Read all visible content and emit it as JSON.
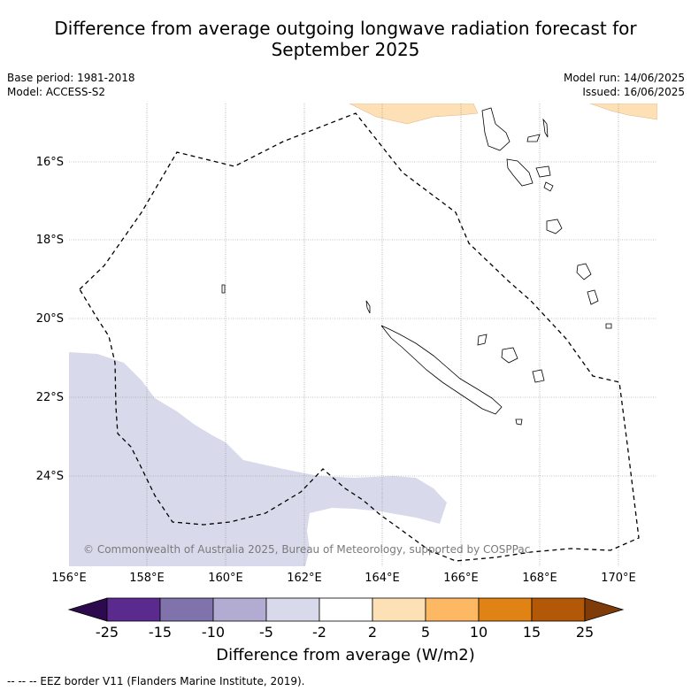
{
  "title_line1": "Difference from average outgoing longwave radiation forecast for",
  "title_line2": "September 2025",
  "base_period": "Base period: 1981-2018",
  "model": "Model: ACCESS-S2",
  "model_run": "Model run: 14/06/2025",
  "issued": "Issued: 16/06/2025",
  "y_labels": [
    "16°S",
    "18°S",
    "20°S",
    "22°S",
    "24°S"
  ],
  "x_labels": [
    "156°E",
    "158°E",
    "160°E",
    "162°E",
    "164°E",
    "166°E",
    "168°E",
    "170°E"
  ],
  "copyright": "© Commonwealth of Australia 2025, Bureau of Meteorology, supported by COSPPac",
  "colorbar": {
    "title": "Difference from average (W/m2)",
    "ticks": [
      "-25",
      "-15",
      "-10",
      "-5",
      "-2",
      "2",
      "5",
      "10",
      "15",
      "25"
    ],
    "colors": [
      "#2d0a4e",
      "#5a2a8e",
      "#8073ac",
      "#b2abd2",
      "#d8daeb",
      "#ffffff",
      "#fee0b6",
      "#fdb863",
      "#e08214",
      "#b35806",
      "#7f3b08"
    ]
  },
  "map": {
    "grid": true,
    "anomaly_colors": {
      "negative_light": "#d8daeb",
      "positive_light": "#fee0b6"
    }
  },
  "legend_text": "-- -- -- EEZ border V11 (Flanders Marine Institute, 2019)."
}
